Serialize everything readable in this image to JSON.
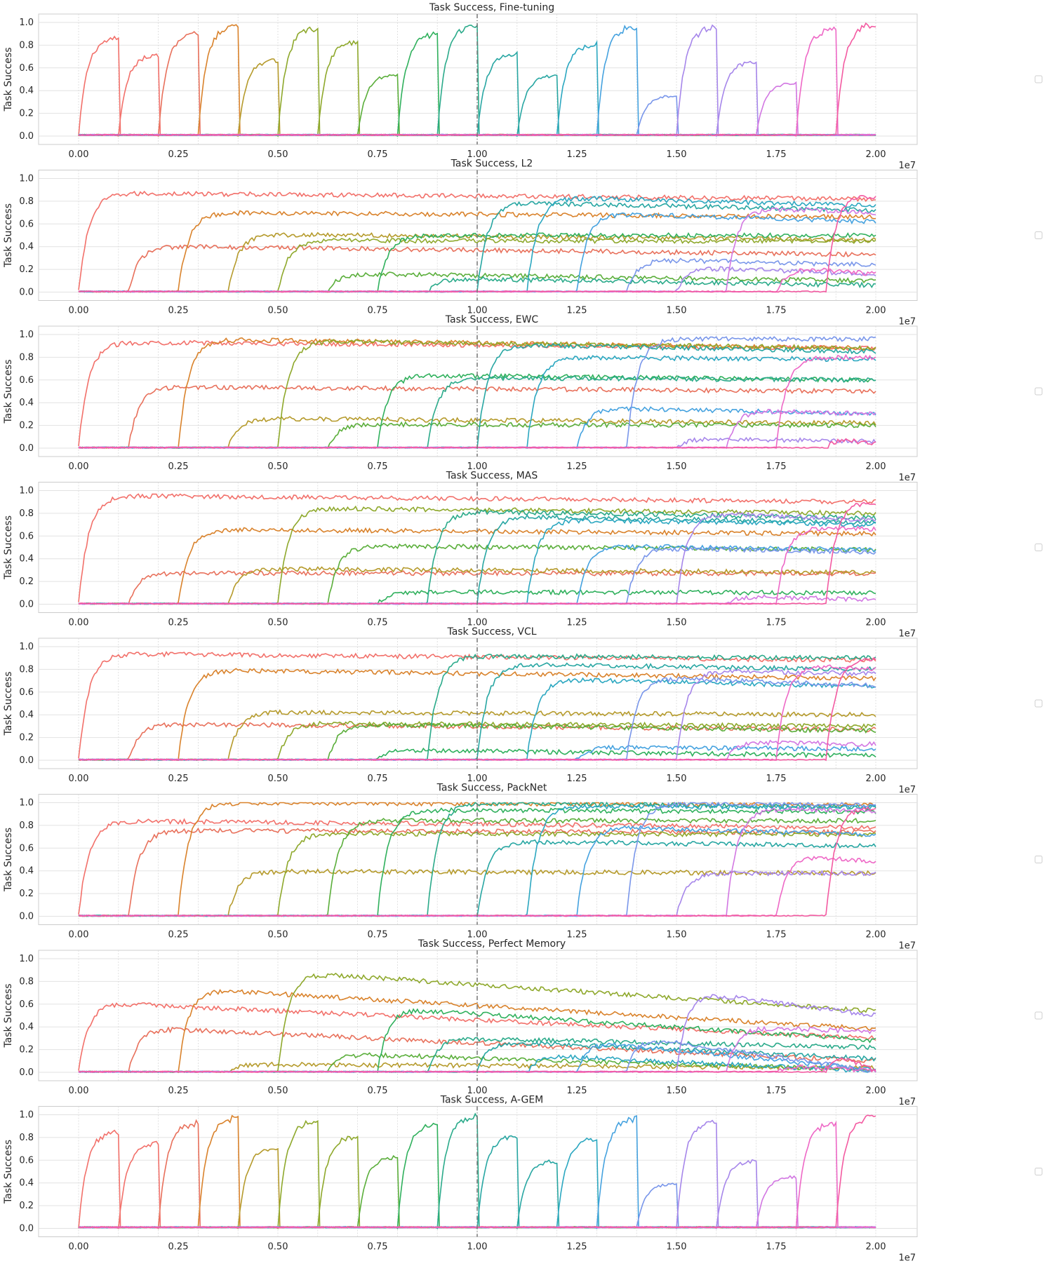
{
  "figure": {
    "legend_placement": "right of each panel (empty)",
    "x_offset_text": "1e7",
    "ylabel": "Task Success",
    "xticks": [
      "0.00",
      "0.25",
      "0.50",
      "0.75",
      "1.00",
      "1.25",
      "1.50",
      "1.75",
      "2.00"
    ],
    "yticks": [
      "0.0",
      "0.2",
      "0.4",
      "0.6",
      "0.8",
      "1.0"
    ],
    "palette": [
      "#f2706a",
      "#e8705b",
      "#d9822b",
      "#b59a2b",
      "#8ea82b",
      "#5aae3a",
      "#2fb05c",
      "#2aaa8a",
      "#27a6a2",
      "#2ba7c0",
      "#45a2df",
      "#7996ea",
      "#a686ea",
      "#d277e2",
      "#ee68c6",
      "#f35aa1"
    ]
  },
  "chart_data": [
    {
      "type": "line",
      "title": "Task Success, Fine-tuning",
      "ylabel": "Task Success",
      "xlim": [
        -0.08,
        2.1
      ],
      "ylim": [
        -0.05,
        1.05
      ],
      "x_scale_multiplier": "1e7",
      "grid": true,
      "task_switch_every": 0.1,
      "dashed_vline_at": 1.0,
      "series_plateaus": [
        0.87,
        0.72,
        0.92,
        0.99,
        0.68,
        0.96,
        0.84,
        0.55,
        0.91,
        0.99,
        0.73,
        0.54,
        0.82,
        0.98,
        0.36,
        0.97,
        0.66,
        0.47,
        0.96,
        1.0
      ]
    },
    {
      "type": "line",
      "title": "Task Success, L2",
      "ylabel": "Task Success",
      "xlim": [
        -0.08,
        2.1
      ],
      "ylim": [
        -0.05,
        1.05
      ],
      "x_scale_multiplier": "1e7",
      "grid": true,
      "dashed_vline_at": 1.0,
      "series_final": [
        0.82,
        0.33,
        0.66,
        0.46,
        0.45,
        0.1,
        0.5,
        0.06,
        0.72,
        0.76,
        0.62,
        0.24,
        0.16,
        0.7,
        0.16,
        0.84
      ]
    },
    {
      "type": "line",
      "title": "Task Success, EWC",
      "ylabel": "Task Success",
      "xlim": [
        -0.08,
        2.1
      ],
      "ylim": [
        -0.05,
        1.05
      ],
      "x_scale_multiplier": "1e7",
      "grid": true,
      "dashed_vline_at": 1.0,
      "series_final": [
        0.88,
        0.5,
        0.88,
        0.22,
        0.88,
        0.2,
        0.6,
        0.6,
        0.85,
        0.78,
        0.3,
        0.96,
        0.06,
        0.3,
        0.8,
        0.04
      ]
    },
    {
      "type": "line",
      "title": "Task Success, MAS",
      "ylabel": "Task Success",
      "xlim": [
        -0.08,
        2.1
      ],
      "ylim": [
        -0.05,
        1.05
      ],
      "x_scale_multiplier": "1e7",
      "grid": true,
      "dashed_vline_at": 1.0,
      "series_final": [
        0.9,
        0.27,
        0.62,
        0.28,
        0.8,
        0.48,
        0.1,
        0.76,
        0.72,
        0.7,
        0.48,
        0.46,
        0.74,
        0.04,
        0.66,
        0.9
      ]
    },
    {
      "type": "line",
      "title": "Task Success, VCL",
      "ylabel": "Task Success",
      "xlim": [
        -0.08,
        2.1
      ],
      "ylim": [
        -0.05,
        1.05
      ],
      "x_scale_multiplier": "1e7",
      "grid": true,
      "dashed_vline_at": 1.0,
      "series_final": [
        0.88,
        0.27,
        0.72,
        0.4,
        0.3,
        0.26,
        0.04,
        0.9,
        0.8,
        0.65,
        0.1,
        0.66,
        0.76,
        0.14,
        0.8,
        0.9
      ]
    },
    {
      "type": "line",
      "title": "Task Success, PackNet",
      "ylabel": "Task Success",
      "xlim": [
        -0.08,
        2.1
      ],
      "ylim": [
        -0.05,
        1.05
      ],
      "x_scale_multiplier": "1e7",
      "grid": true,
      "dashed_vline_at": 1.0,
      "series_final": [
        0.78,
        0.74,
        0.98,
        0.38,
        0.72,
        0.84,
        0.92,
        0.96,
        0.62,
        0.96,
        0.72,
        0.98,
        0.38,
        0.93,
        0.48,
        0.96
      ]
    },
    {
      "type": "line",
      "title": "Task Success, Perfect Memory",
      "ylabel": "Task Success",
      "xlim": [
        -0.08,
        2.1
      ],
      "ylim": [
        -0.05,
        1.05
      ],
      "x_scale_multiplier": "1e7",
      "grid": true,
      "dashed_vline_at": 1.0,
      "series_final": [
        0.3,
        0.1,
        0.38,
        0.04,
        0.54,
        0.02,
        0.28,
        0.22,
        0.12,
        0.01,
        0.02,
        0.01,
        0.5,
        0.36,
        0.01,
        0.01
      ]
    },
    {
      "type": "line",
      "title": "Task Success, A-GEM",
      "ylabel": "Task Success",
      "xlim": [
        -0.08,
        2.1
      ],
      "ylim": [
        -0.05,
        1.05
      ],
      "x_scale_multiplier": "1e7",
      "grid": true,
      "task_switch_every": 0.1,
      "dashed_vline_at": 1.0,
      "series_plateaus": [
        0.86,
        0.76,
        0.94,
        0.99,
        0.72,
        0.96,
        0.82,
        0.64,
        0.93,
        1.0,
        0.82,
        0.6,
        0.8,
        0.98,
        0.4,
        0.96,
        0.6,
        0.46,
        0.94,
        1.0
      ]
    }
  ]
}
